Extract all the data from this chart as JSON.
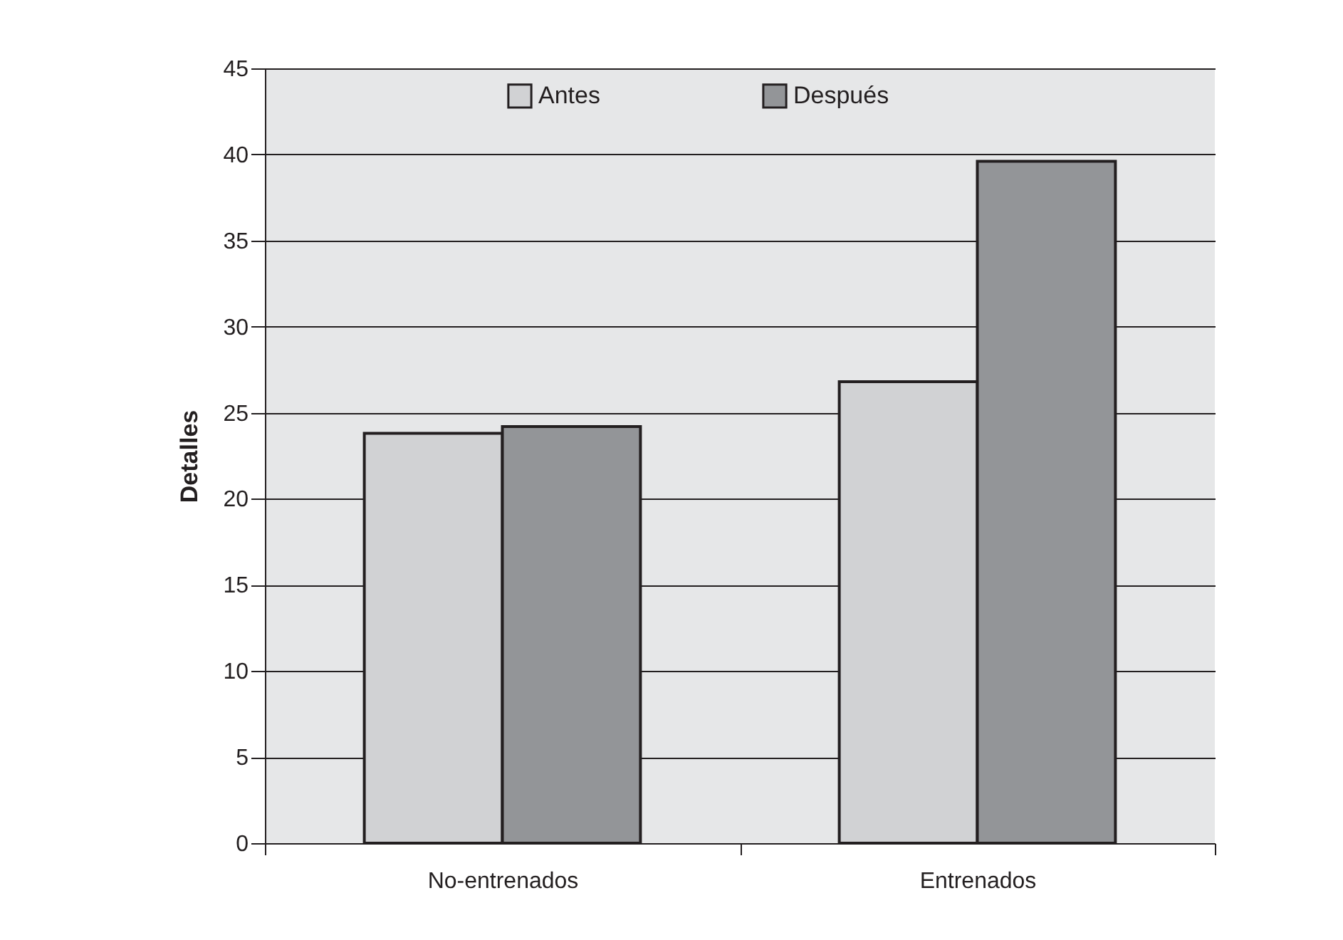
{
  "chart_data": {
    "type": "bar",
    "ylabel": "Detalles",
    "categories": [
      "No-entrenados",
      "Entrenados"
    ],
    "series": [
      {
        "name": "Antes",
        "color": "#d1d2d4",
        "values": [
          23.8,
          26.8
        ]
      },
      {
        "name": "Después",
        "color": "#939598",
        "values": [
          24.2,
          39.6
        ]
      }
    ],
    "ylim": [
      0,
      45
    ],
    "yticks": [
      0,
      5,
      10,
      15,
      20,
      25,
      30,
      35,
      40,
      45
    ],
    "grid": "y",
    "legend": "top"
  }
}
